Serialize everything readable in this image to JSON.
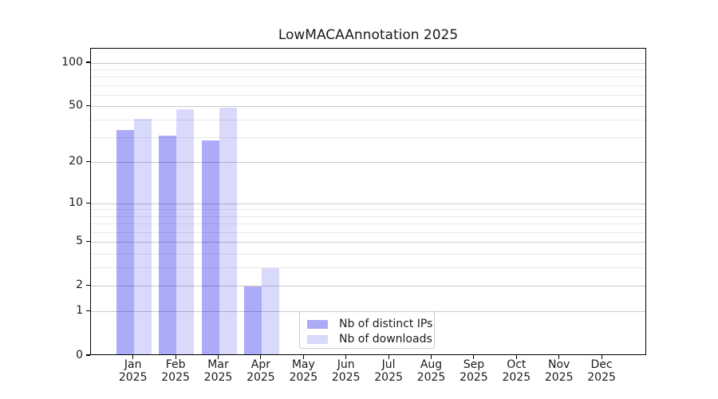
{
  "chart_data": {
    "type": "bar",
    "title": "LowMACAAnnotation 2025",
    "year": "2025",
    "categories": [
      "Jan",
      "Feb",
      "Mar",
      "Apr",
      "May",
      "Jun",
      "Jul",
      "Aug",
      "Sep",
      "Oct",
      "Nov",
      "Dec"
    ],
    "series": [
      {
        "name": "Nb of distinct IPs",
        "key": "distinct-ips",
        "color": "rgba(0,0,230,0.33)",
        "values": [
          34,
          31,
          29,
          2,
          0,
          0,
          0,
          0,
          0,
          0,
          0,
          0
        ]
      },
      {
        "name": "Nb of downloads",
        "key": "downloads",
        "color": "rgba(0,0,230,0.15)",
        "values": [
          41,
          48,
          49,
          3,
          0,
          0,
          0,
          0,
          0,
          0,
          0,
          0
        ]
      }
    ],
    "y_axis": {
      "scale": "log1p",
      "tick_values": [
        100,
        50,
        20,
        10,
        5,
        2,
        1,
        0
      ],
      "minor_gridlines": [
        90,
        80,
        70,
        60,
        40,
        30,
        9,
        8,
        7,
        6,
        4,
        3
      ],
      "ylim": [
        0,
        126
      ]
    },
    "x_axis": {
      "label_format": "month-over-year"
    },
    "legend": {
      "position": "lower-center-right"
    },
    "grid": true,
    "colors": {
      "bar_distinct_ips": "rgba(0,0,230,0.33)",
      "bar_downloads": "rgba(0,0,230,0.15)",
      "major_grid": "#c9c9c9",
      "minor_grid": "#e9e9e9",
      "spine": "#000000",
      "text": "#1a1a1a"
    }
  }
}
